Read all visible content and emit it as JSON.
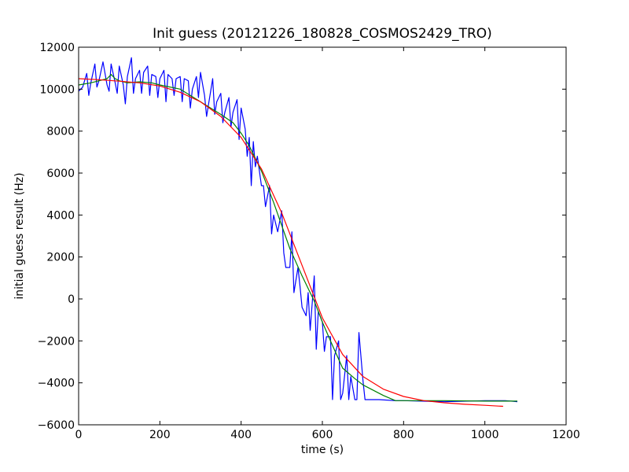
{
  "chart_data": {
    "type": "line",
    "title": "Init guess (20121226_180828_COSMOS2429_TRO)",
    "xlabel": "time (s)",
    "ylabel": "initial guess result (Hz)",
    "xlim": [
      0,
      1200
    ],
    "ylim": [
      -6000,
      12000
    ],
    "xticks": [
      0,
      200,
      400,
      600,
      800,
      1000,
      1200
    ],
    "yticks": [
      -6000,
      -4000,
      -2000,
      0,
      2000,
      4000,
      6000,
      8000,
      10000,
      12000
    ],
    "grid": false,
    "legend": "none",
    "series": [
      {
        "color": "#0000ff",
        "x": [
          0,
          10,
          20,
          25,
          30,
          40,
          45,
          50,
          60,
          70,
          75,
          80,
          90,
          95,
          100,
          110,
          115,
          120,
          130,
          135,
          140,
          150,
          155,
          160,
          170,
          175,
          180,
          190,
          195,
          200,
          210,
          215,
          220,
          230,
          235,
          240,
          250,
          255,
          260,
          270,
          275,
          280,
          290,
          295,
          300,
          310,
          315,
          320,
          330,
          335,
          340,
          350,
          355,
          360,
          370,
          375,
          380,
          390,
          395,
          400,
          410,
          415,
          420,
          425,
          430,
          435,
          440,
          450,
          455,
          460,
          470,
          475,
          480,
          490,
          500,
          505,
          510,
          520,
          525,
          530,
          540,
          545,
          550,
          560,
          565,
          570,
          580,
          585,
          590,
          600,
          605,
          610,
          620,
          625,
          630,
          640,
          645,
          650,
          660,
          665,
          670,
          680,
          685,
          690,
          700,
          705,
          710,
          720,
          740,
          780,
          800,
          900,
          1000,
          1050,
          1070,
          1080
        ],
        "y": [
          9900,
          10100,
          10750,
          9700,
          10300,
          11200,
          10100,
          10400,
          11300,
          10200,
          9900,
          11200,
          10300,
          9800,
          11100,
          10200,
          9300,
          10600,
          11500,
          9800,
          10500,
          10900,
          9800,
          10800,
          11100,
          9700,
          10700,
          10600,
          9600,
          10500,
          10900,
          9400,
          10700,
          10500,
          9700,
          10500,
          10600,
          9400,
          10500,
          10400,
          9100,
          10000,
          10600,
          9600,
          10800,
          9700,
          8700,
          9300,
          10500,
          8800,
          9400,
          9800,
          8400,
          8900,
          9600,
          8200,
          8900,
          9500,
          7600,
          9100,
          8100,
          6800,
          7700,
          5400,
          7500,
          6300,
          6800,
          5400,
          5400,
          4400,
          5400,
          3100,
          4000,
          3200,
          4200,
          2200,
          1500,
          1500,
          3200,
          300,
          1500,
          600,
          -400,
          -800,
          300,
          -1500,
          1100,
          -2400,
          -600,
          -1100,
          -2500,
          -1800,
          -1800,
          -4800,
          -2700,
          -2000,
          -4800,
          -4500,
          -2700,
          -4800,
          -3700,
          -4800,
          -4800,
          -1600,
          -3900,
          -4800,
          -4800,
          -4800,
          -4800,
          -4850,
          -4850,
          -4900,
          -4850,
          -4850,
          -4880,
          -4900
        ]
      },
      {
        "color": "#008000",
        "x": [
          0,
          30,
          50,
          70,
          80,
          90,
          100,
          120,
          150,
          180,
          200,
          250,
          300,
          350,
          380,
          400,
          420,
          450,
          480,
          500,
          520,
          550,
          580,
          600,
          620,
          650,
          680,
          700,
          750,
          780,
          800,
          900,
          1000,
          1080
        ],
        "y": [
          10200,
          10300,
          10400,
          10500,
          10700,
          10500,
          10400,
          10300,
          10350,
          10300,
          10200,
          10000,
          9400,
          8800,
          8400,
          7900,
          7300,
          6100,
          4600,
          3500,
          2400,
          1100,
          -100,
          -1100,
          -2000,
          -3300,
          -3800,
          -4100,
          -4600,
          -4850,
          -4850,
          -4850,
          -4870,
          -4870
        ]
      },
      {
        "color": "#ff0000",
        "x": [
          0,
          50,
          100,
          150,
          200,
          250,
          300,
          350,
          400,
          450,
          500,
          550,
          600,
          650,
          700,
          750,
          800,
          850,
          900,
          950,
          1000,
          1045
        ],
        "y": [
          10500,
          10450,
          10380,
          10300,
          10150,
          9850,
          9400,
          8700,
          7700,
          6200,
          4100,
          1600,
          -900,
          -2650,
          -3700,
          -4300,
          -4650,
          -4850,
          -4950,
          -5020,
          -5070,
          -5120
        ]
      }
    ]
  }
}
